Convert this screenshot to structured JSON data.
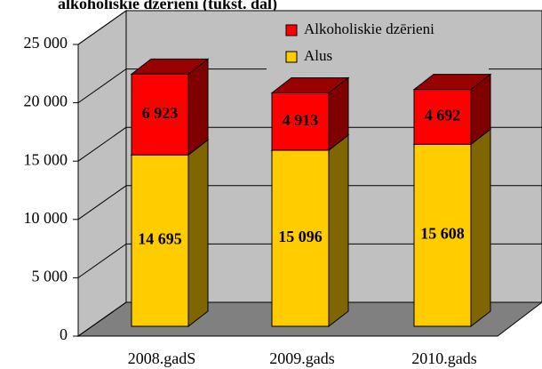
{
  "chart_data": {
    "type": "bar3d_stacked",
    "title": "alkoholiskie dzērieni (tūkst. dal)",
    "categories": [
      "2008.gadS",
      "2009.gads",
      "2010.gads"
    ],
    "series": [
      {
        "name": "Alus",
        "color": "#ffcc00",
        "values": [
          14695,
          15096,
          15608
        ],
        "value_labels": [
          "14 695",
          "15 096",
          "15 608"
        ]
      },
      {
        "name": "Alkoholiskie dzērieni",
        "color": "#ff0000",
        "values": [
          6923,
          4913,
          4692
        ],
        "value_labels": [
          "6 923",
          "4 913",
          "4 692"
        ]
      }
    ],
    "ylim": [
      0,
      25000
    ],
    "yticks": [
      {
        "value": 0,
        "label": "0"
      },
      {
        "value": 5000,
        "label": "5 000"
      },
      {
        "value": 10000,
        "label": "10 000"
      },
      {
        "value": 15000,
        "label": "15 000"
      },
      {
        "value": 20000,
        "label": "20 000"
      },
      {
        "value": 25000,
        "label": "25 000"
      }
    ],
    "grid": true
  }
}
